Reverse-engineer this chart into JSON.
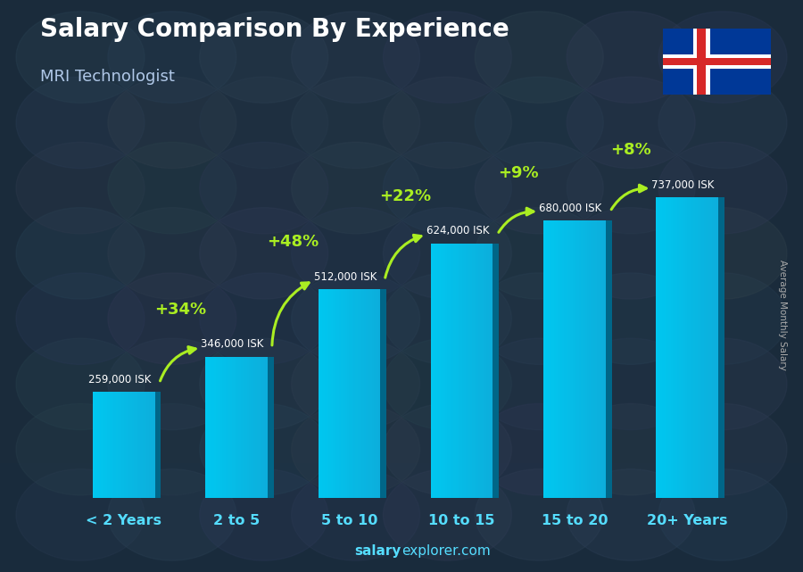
{
  "title": "Salary Comparison By Experience",
  "subtitle": "MRI Technologist",
  "categories": [
    "< 2 Years",
    "2 to 5",
    "5 to 10",
    "10 to 15",
    "15 to 20",
    "20+ Years"
  ],
  "values": [
    259000,
    346000,
    512000,
    624000,
    680000,
    737000
  ],
  "salary_labels": [
    "259,000 ISK",
    "346,000 ISK",
    "512,000 ISK",
    "624,000 ISK",
    "680,000 ISK",
    "737,000 ISK"
  ],
  "pct_labels": [
    "+34%",
    "+48%",
    "+22%",
    "+9%",
    "+8%"
  ],
  "bar_color": "#00c8f0",
  "bar_edge_color": "#0099cc",
  "bar_dark_color": "#006688",
  "background_color": "#1c2b3a",
  "title_color": "#ffffff",
  "subtitle_color": "#b0c8e8",
  "salary_label_color": "#ffffff",
  "pct_color": "#aaee22",
  "xlabel_color": "#55ddff",
  "footer_salary_color": "#55ddff",
  "footer_explorer_color": "#55ddff",
  "ylabel_text": "Average Monthly Salary",
  "ylabel_color": "#aaaaaa",
  "ylim_max": 870000,
  "bar_width": 0.55,
  "flag_blue": "#003897",
  "flag_red": "#d72828",
  "flag_white": "#ffffff"
}
